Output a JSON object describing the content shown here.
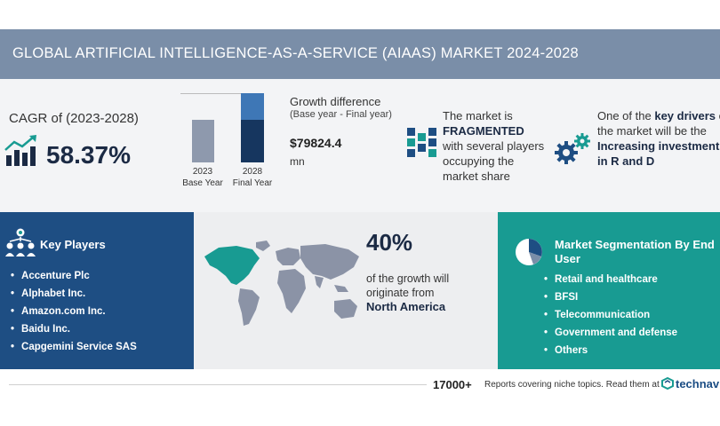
{
  "header": {
    "title": "GLOBAL ARTIFICIAL INTELLIGENCE-AS-A-SERVICE (AIAAS) MARKET 2024-2028"
  },
  "cagr": {
    "label": "CAGR of (2023-2028)",
    "value": "58.37%",
    "icon": "bar-chart-trend-icon"
  },
  "growth": {
    "bar_2023_label": "2023",
    "bar_2023_sub": "Base Year",
    "bar_2028_label": "2028",
    "bar_2028_sub": "Final Year",
    "title": "Growth difference",
    "subtitle": "(Base year - Final year)",
    "value": "$79824.4",
    "unit": "mn"
  },
  "market": {
    "line1": "The market is",
    "emphasis": "FRAGMENTED",
    "line2": "with several players occupying the market share",
    "icon": "fragmented-blocks-icon"
  },
  "drivers": {
    "line1": "One of the",
    "emphasis": "key drivers",
    "line2": "of the market will be the",
    "driver": "Increasing investment in R and D",
    "icon": "gears-icon"
  },
  "key_players": {
    "title": "Key Players",
    "icon": "people-network-icon",
    "items": [
      "Accenture Plc",
      "Alphabet Inc.",
      "Amazon.com Inc.",
      "Baidu Inc.",
      "Capgemini Service SAS"
    ]
  },
  "region": {
    "percent": "40%",
    "text": "of the growth will originate from",
    "name": "North America",
    "icon": "world-map-icon",
    "colors": {
      "highlight": "#189b92",
      "land": "#8b93a6"
    }
  },
  "segmentation": {
    "title": "Market Segmentation By End User",
    "icon": "pie-chart-icon",
    "items": [
      "Retail and healthcare",
      "BFSI",
      "Telecommunication",
      "Government and defense",
      "Others"
    ]
  },
  "footer": {
    "count": "17000+",
    "text": "Reports covering niche topics. Read them at",
    "brand": "technavio",
    "icon": "technavio-logo-icon"
  },
  "colors": {
    "header": "#7a8ea8",
    "navy": "#1e4e83",
    "teal": "#189b92",
    "dark": "#1b2a44"
  }
}
